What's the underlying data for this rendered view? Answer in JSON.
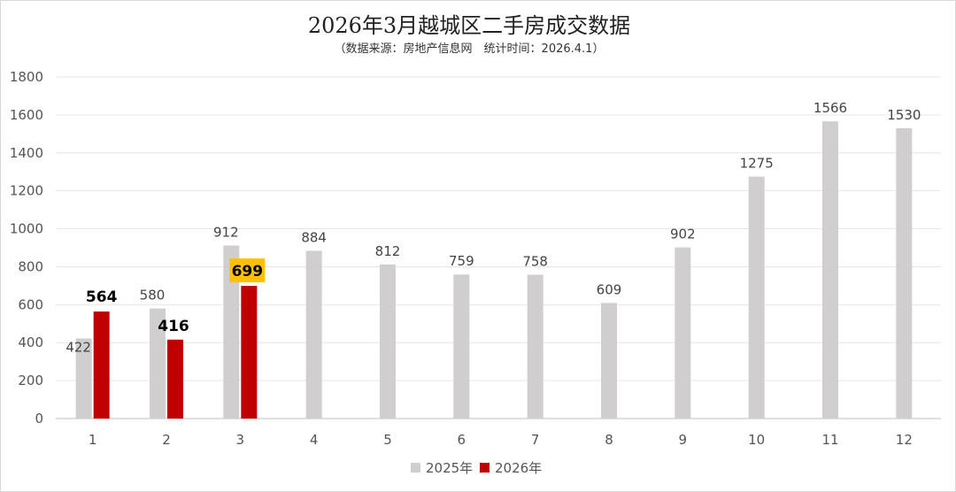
{
  "chart_data": {
    "type": "bar",
    "title": "2026年3月越城区二手房成交数据",
    "subtitle": "（数据来源：房地产信息网　统计时间：2026.4.1）",
    "categories": [
      "1",
      "2",
      "3",
      "4",
      "5",
      "6",
      "7",
      "8",
      "9",
      "10",
      "11",
      "12"
    ],
    "series": [
      {
        "name": "2025年",
        "color": "#d0cece",
        "values": [
          422,
          580,
          912,
          884,
          812,
          759,
          758,
          609,
          902,
          1275,
          1566,
          1530
        ]
      },
      {
        "name": "2026年",
        "color": "#c00000",
        "values": [
          564,
          416,
          699,
          null,
          null,
          null,
          null,
          null,
          null,
          null,
          null,
          null
        ]
      }
    ],
    "ylim": [
      0,
      1800
    ],
    "yticks": [
      0,
      200,
      400,
      600,
      800,
      1000,
      1200,
      1400,
      1600,
      1800
    ],
    "grid": true,
    "legend_position": "bottom",
    "highlight": {
      "series": "2026年",
      "category": "3",
      "color": "#ffc000"
    }
  }
}
